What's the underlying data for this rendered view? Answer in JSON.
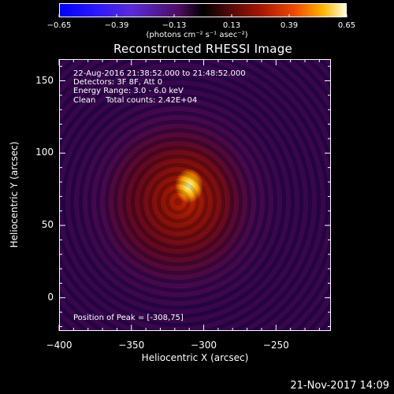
{
  "chart_data": {
    "type": "heatmap",
    "title": "Reconstructed RHESSI Image",
    "xlabel": "Heliocentric X (arcsec)",
    "ylabel": "Heliocentric Y (arcsec)",
    "xlim": [
      -400,
      -212
    ],
    "ylim": [
      -23,
      165
    ],
    "xticks": [
      -400,
      -350,
      -300,
      -250
    ],
    "xtick_labels": [
      "−400",
      "−350",
      "−300",
      "−250"
    ],
    "yticks": [
      0,
      50,
      100,
      150
    ],
    "ytick_labels": [
      "0",
      "50",
      "100",
      "150"
    ],
    "colorbar": {
      "range": [
        -0.65,
        0.65
      ],
      "ticks": [
        -0.65,
        -0.39,
        -0.13,
        0.13,
        0.39,
        0.65
      ],
      "tick_labels": [
        "−0.65",
        "−0.39",
        "−0.13",
        "0.13",
        "0.39",
        "0.65"
      ],
      "unit_label": "(photons cm⁻² s⁻¹ asec⁻²)"
    },
    "peak": [
      -308,
      75
    ]
  },
  "info": {
    "line1": "22-Aug-2016 21:38:52.000 to 21:48:52.000",
    "line2": "Detectors: 3F 8F, Att 0",
    "line3": "Energy Range: 3.0 - 6.0 keV",
    "line4": "Clean    Total counts: 2.42E+04",
    "peak_label": "Position of Peak = [-308,75]"
  },
  "timestamp": "21-Nov-2017 14:09"
}
